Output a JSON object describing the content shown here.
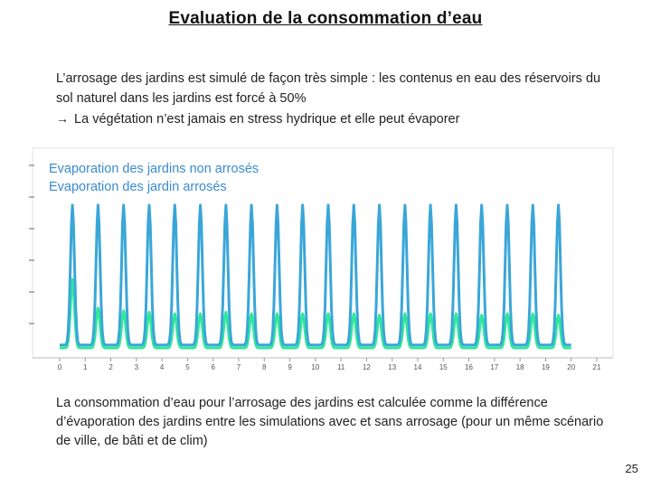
{
  "slide": {
    "title": "Evaluation de la consommation d’eau",
    "intro": {
      "line1": "L’arrosage des jardins est simulé de façon très simple : les contenus en eau des réservoirs du sol naturel dans les jardins est forcé à 50%",
      "arrow": "→",
      "line2": "La végétation n’est jamais en stress hydrique et elle peut évaporer"
    },
    "footer_text": "La consommation d’eau pour l’arrosage des jardins est calculée comme la différence d’évaporation des jardins entre les simulations avec et sans arrosage (pour un même scénario de ville, de bâti et de clim)",
    "page_number": "25"
  },
  "chart_data": {
    "type": "line",
    "title": "",
    "xlabel": "",
    "ylabel": "",
    "x_ticks": [
      "0",
      "1",
      "2",
      "3",
      "4",
      "5",
      "6",
      "7",
      "8",
      "9",
      "10",
      "11",
      "12",
      "13",
      "14",
      "15",
      "16",
      "17",
      "18",
      "19",
      "20",
      "21"
    ],
    "xlim": [
      0,
      21
    ],
    "ylim": [
      0,
      1
    ],
    "legend_position": "top-left",
    "series": [
      {
        "name": "Evaporation des jardins non arrosés",
        "color": "#2fe89a",
        "daily_peak": [
          0.48,
          0.28,
          0.26,
          0.25,
          0.24,
          0.24,
          0.25,
          0.24,
          0.24,
          0.24,
          0.24,
          0.24,
          0.23,
          0.24,
          0.24,
          0.24,
          0.23,
          0.24,
          0.24,
          0.23
        ],
        "daily_min": 0.0
      },
      {
        "name": "Evaporation des jardin arrosés",
        "color": "#3aa6d8",
        "daily_peak": [
          1.0,
          1.0,
          1.0,
          1.0,
          1.0,
          1.0,
          1.0,
          1.0,
          1.0,
          1.0,
          1.0,
          1.0,
          1.0,
          1.0,
          1.0,
          1.0,
          1.0,
          1.0,
          1.0,
          1.0
        ],
        "daily_min": 0.02
      }
    ]
  }
}
